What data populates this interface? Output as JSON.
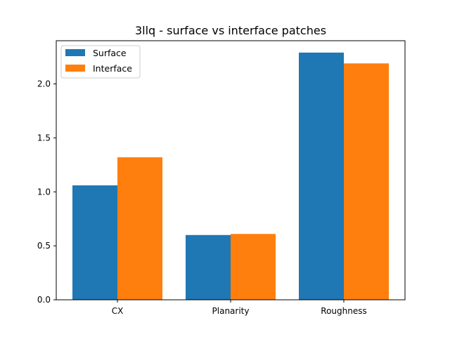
{
  "chart_data": {
    "type": "bar",
    "title": "3llq - surface vs interface patches",
    "xlabel": "",
    "ylabel": "",
    "categories": [
      "CX",
      "Planarity",
      "Roughness"
    ],
    "series": [
      {
        "name": "Surface",
        "values": [
          1.06,
          0.6,
          2.29
        ],
        "color": "#1f77b4"
      },
      {
        "name": "Interface",
        "values": [
          1.32,
          0.61,
          2.19
        ],
        "color": "#ff7f0e"
      }
    ],
    "ylim": [
      0,
      2.4
    ],
    "yticks": [
      0.0,
      0.5,
      1.0,
      1.5,
      2.0
    ],
    "ytick_labels": [
      "0.0",
      "0.5",
      "1.0",
      "1.5",
      "2.0"
    ],
    "grid": false,
    "legend_position": "top-left"
  }
}
